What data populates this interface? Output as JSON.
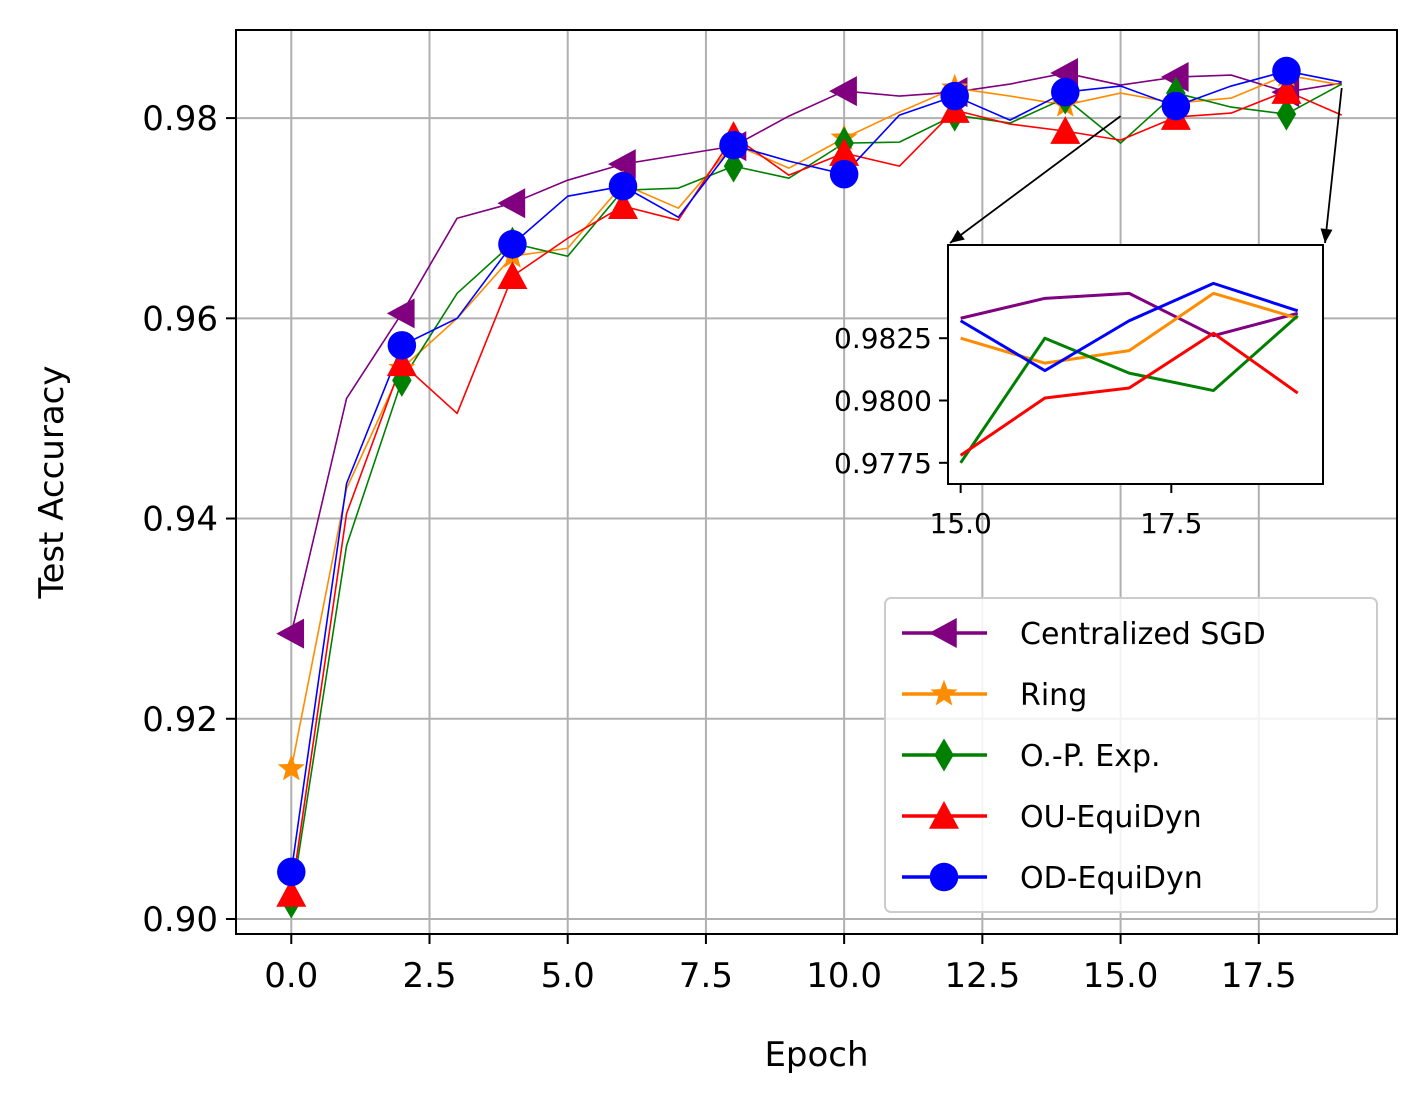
{
  "chart_data": {
    "type": "line",
    "xlabel": "Epoch",
    "ylabel": "Test Accuracy",
    "xlim": [
      -1,
      20
    ],
    "ylim": [
      0.8985,
      0.9888
    ],
    "grid": true,
    "x_ticks": [
      0.0,
      2.5,
      5.0,
      7.5,
      10.0,
      12.5,
      15.0,
      17.5
    ],
    "x_tick_labels": [
      "0.0",
      "2.5",
      "5.0",
      "7.5",
      "10.0",
      "12.5",
      "15.0",
      "17.5"
    ],
    "y_ticks": [
      0.9,
      0.92,
      0.94,
      0.96,
      0.98
    ],
    "y_tick_labels": [
      "0.90",
      "0.92",
      "0.94",
      "0.96",
      "0.98"
    ],
    "legend_position": "lower-right",
    "x": [
      0,
      1,
      2,
      3,
      4,
      5,
      6,
      7,
      8,
      9,
      10,
      11,
      12,
      13,
      14,
      15,
      16,
      17,
      18,
      19
    ],
    "series": [
      {
        "name": "Centralized SGD",
        "color": "#800080",
        "marker": "triangle-left",
        "values": [
          0.9285,
          0.952,
          0.9605,
          0.97,
          0.9715,
          0.9738,
          0.9754,
          0.9763,
          0.9772,
          0.9802,
          0.9827,
          0.9822,
          0.9826,
          0.9834,
          0.9845,
          0.9833,
          0.9841,
          0.9843,
          0.9826,
          0.9835
        ]
      },
      {
        "name": "Ring",
        "color": "#ff8c00",
        "marker": "star",
        "values": [
          0.915,
          0.943,
          0.955,
          0.96,
          0.9662,
          0.967,
          0.9734,
          0.971,
          0.9774,
          0.975,
          0.978,
          0.9806,
          0.983,
          0.9822,
          0.9813,
          0.9825,
          0.9815,
          0.982,
          0.9843,
          0.9833
        ]
      },
      {
        "name": "O.-P. Exp.",
        "color": "#008000",
        "marker": "diamond",
        "values": [
          0.9017,
          0.9373,
          0.9538,
          0.9625,
          0.9675,
          0.9662,
          0.9728,
          0.973,
          0.9752,
          0.974,
          0.9775,
          0.9776,
          0.9803,
          0.9795,
          0.982,
          0.9775,
          0.9825,
          0.9811,
          0.9804,
          0.9834
        ]
      },
      {
        "name": "OU-EquiDyn",
        "color": "#ff0000",
        "marker": "triangle-up",
        "values": [
          0.9025,
          0.9405,
          0.9555,
          0.9505,
          0.9642,
          0.968,
          0.9712,
          0.9698,
          0.9782,
          0.9743,
          0.9765,
          0.9752,
          0.9808,
          0.9794,
          0.9787,
          0.9778,
          0.9801,
          0.9805,
          0.9827,
          0.9803
        ]
      },
      {
        "name": "OD-EquiDyn",
        "color": "#0000ff",
        "marker": "circle",
        "values": [
          0.9047,
          0.9435,
          0.9573,
          0.96,
          0.9674,
          0.9722,
          0.9732,
          0.9701,
          0.9773,
          0.9757,
          0.9744,
          0.9803,
          0.9822,
          0.9798,
          0.9826,
          0.9832,
          0.9812,
          0.9832,
          0.9847,
          0.9836
        ]
      }
    ],
    "inset": {
      "xlim": [
        14.85,
        19.3
      ],
      "ylim": [
        0.97665,
        0.98624
      ],
      "x_ticks": [
        15.0,
        17.5
      ],
      "x_tick_labels": [
        "15.0",
        "17.5"
      ],
      "y_ticks": [
        0.9775,
        0.98,
        0.9825
      ],
      "y_tick_labels": [
        "0.9775",
        "0.9800",
        "0.9825"
      ],
      "x_range_shown": [
        15,
        19
      ]
    }
  }
}
